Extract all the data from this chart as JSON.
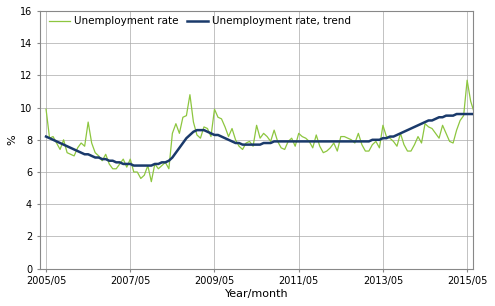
{
  "title": "",
  "ylabel": "%",
  "xlabel": "Year/month",
  "ylim": [
    0,
    16
  ],
  "yticks": [
    0,
    2,
    4,
    6,
    8,
    10,
    12,
    14,
    16
  ],
  "xtick_labels": [
    "2005/05",
    "2007/05",
    "2009/05",
    "2011/05",
    "2013/05",
    "2015/05"
  ],
  "line_color_unemployment": "#8dc63f",
  "line_color_trend": "#1a3a6b",
  "legend_labels": [
    "Unemployment rate",
    "Unemployment rate, trend"
  ],
  "background_color": "#ffffff",
  "grid_color": "#aaaaaa",
  "unemployment_rate": [
    9.9,
    8.1,
    8.2,
    7.8,
    7.4,
    8.0,
    7.2,
    7.1,
    7.0,
    7.5,
    7.8,
    7.6,
    9.1,
    7.8,
    7.2,
    7.0,
    6.7,
    7.1,
    6.5,
    6.2,
    6.2,
    6.5,
    6.8,
    6.3,
    6.8,
    6.0,
    6.0,
    5.6,
    5.8,
    6.4,
    5.4,
    6.5,
    6.2,
    6.4,
    6.6,
    6.2,
    8.4,
    9.0,
    8.4,
    9.4,
    9.5,
    10.8,
    9.1,
    8.3,
    8.1,
    8.8,
    8.7,
    8.2,
    9.9,
    9.4,
    9.3,
    8.8,
    8.2,
    8.7,
    8.0,
    7.6,
    7.4,
    7.8,
    7.9,
    7.6,
    8.9,
    8.1,
    8.4,
    8.2,
    7.9,
    8.6,
    7.9,
    7.5,
    7.4,
    7.9,
    8.1,
    7.6,
    8.4,
    8.2,
    8.1,
    7.9,
    7.5,
    8.3,
    7.6,
    7.2,
    7.3,
    7.5,
    7.8,
    7.3,
    8.2,
    8.2,
    8.1,
    8.0,
    7.8,
    8.4,
    7.7,
    7.3,
    7.3,
    7.7,
    7.9,
    7.5,
    8.9,
    8.2,
    8.1,
    7.9,
    7.6,
    8.4,
    7.7,
    7.3,
    7.3,
    7.7,
    8.2,
    7.8,
    9.0,
    8.8,
    8.7,
    8.4,
    8.1,
    8.9,
    8.4,
    7.9,
    7.8,
    8.6,
    9.2,
    9.5,
    11.7,
    10.4,
    9.7,
    9.4,
    8.9
  ],
  "trend": [
    8.2,
    8.1,
    8.0,
    7.9,
    7.8,
    7.7,
    7.6,
    7.5,
    7.4,
    7.3,
    7.2,
    7.1,
    7.1,
    7.0,
    6.9,
    6.9,
    6.8,
    6.8,
    6.7,
    6.7,
    6.6,
    6.6,
    6.5,
    6.5,
    6.5,
    6.4,
    6.4,
    6.4,
    6.4,
    6.4,
    6.4,
    6.5,
    6.5,
    6.6,
    6.6,
    6.7,
    6.9,
    7.2,
    7.5,
    7.8,
    8.1,
    8.3,
    8.5,
    8.6,
    8.6,
    8.6,
    8.5,
    8.4,
    8.3,
    8.3,
    8.2,
    8.1,
    8.0,
    7.9,
    7.8,
    7.8,
    7.7,
    7.7,
    7.7,
    7.7,
    7.7,
    7.7,
    7.8,
    7.8,
    7.8,
    7.9,
    7.9,
    7.9,
    7.9,
    7.9,
    7.9,
    7.9,
    7.9,
    7.9,
    7.9,
    7.9,
    7.9,
    7.9,
    7.9,
    7.9,
    7.9,
    7.9,
    7.9,
    7.9,
    7.9,
    7.9,
    7.9,
    7.9,
    7.9,
    7.9,
    7.9,
    7.9,
    7.9,
    8.0,
    8.0,
    8.0,
    8.1,
    8.1,
    8.2,
    8.2,
    8.3,
    8.4,
    8.5,
    8.6,
    8.7,
    8.8,
    8.9,
    9.0,
    9.1,
    9.2,
    9.2,
    9.3,
    9.4,
    9.4,
    9.5,
    9.5,
    9.5,
    9.6,
    9.6,
    9.6,
    9.6,
    9.6,
    9.6,
    9.6,
    9.6
  ]
}
